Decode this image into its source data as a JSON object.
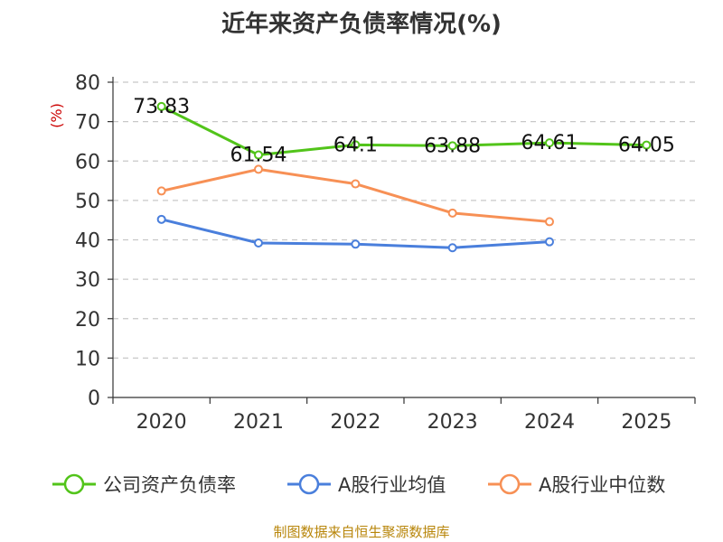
{
  "chart_data": {
    "type": "line",
    "title": "近年来资产负债率情况(%)",
    "ylabel": "(%)",
    "ylim": [
      0,
      80
    ],
    "yticks": [
      0,
      10,
      20,
      30,
      40,
      50,
      60,
      70,
      80
    ],
    "categories": [
      "2020",
      "2021",
      "2022",
      "2023",
      "2024",
      "2025"
    ],
    "grid": true,
    "legend_position": "bottom",
    "series": [
      {
        "name": "公司资产负债率",
        "color": "#52c41a",
        "values": [
          73.83,
          61.54,
          64.1,
          63.88,
          64.61,
          64.05
        ],
        "data_labels": [
          "73.83",
          "61.54",
          "64.1",
          "63.88",
          "64.61",
          "64.05"
        ]
      },
      {
        "name": "A股行业均值",
        "color": "#4a7fdc",
        "values": [
          45.2,
          39.2,
          38.9,
          38.0,
          39.5,
          null
        ]
      },
      {
        "name": "A股行业中位数",
        "color": "#f79055",
        "values": [
          52.4,
          57.9,
          54.2,
          46.8,
          44.6,
          null
        ]
      }
    ]
  },
  "footer": {
    "source": "制图数据来自恒生聚源数据库"
  }
}
